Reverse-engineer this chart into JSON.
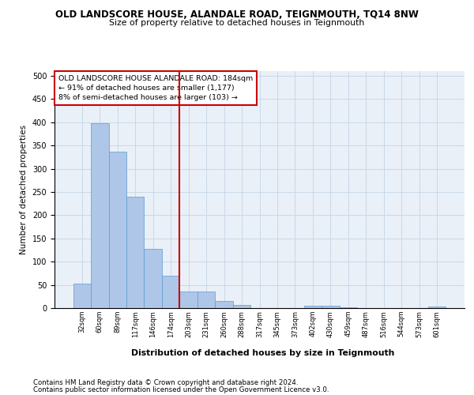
{
  "title": "OLD LANDSCORE HOUSE, ALANDALE ROAD, TEIGNMOUTH, TQ14 8NW",
  "subtitle": "Size of property relative to detached houses in Teignmouth",
  "xlabel": "Distribution of detached houses by size in Teignmouth",
  "ylabel": "Number of detached properties",
  "categories": [
    "32sqm",
    "60sqm",
    "89sqm",
    "117sqm",
    "146sqm",
    "174sqm",
    "203sqm",
    "231sqm",
    "260sqm",
    "288sqm",
    "317sqm",
    "345sqm",
    "373sqm",
    "402sqm",
    "430sqm",
    "459sqm",
    "487sqm",
    "516sqm",
    "544sqm",
    "573sqm",
    "601sqm"
  ],
  "values": [
    52,
    398,
    337,
    240,
    128,
    70,
    35,
    35,
    16,
    7,
    0,
    0,
    0,
    5,
    5,
    2,
    0,
    0,
    0,
    0,
    3
  ],
  "bar_color": "#aec6e8",
  "bar_edge_color": "#5b9bd5",
  "grid_color": "#c8d8e8",
  "background_color": "#eaf0f8",
  "annotation_box_text": "OLD LANDSCORE HOUSE ALANDALE ROAD: 184sqm\n← 91% of detached houses are smaller (1,177)\n8% of semi-detached houses are larger (103) →",
  "annotation_box_color": "#cc0000",
  "vline_color": "#cc0000",
  "footnote1": "Contains HM Land Registry data © Crown copyright and database right 2024.",
  "footnote2": "Contains public sector information licensed under the Open Government Licence v3.0.",
  "ylim": [
    0,
    510
  ],
  "yticks": [
    0,
    50,
    100,
    150,
    200,
    250,
    300,
    350,
    400,
    450,
    500
  ]
}
